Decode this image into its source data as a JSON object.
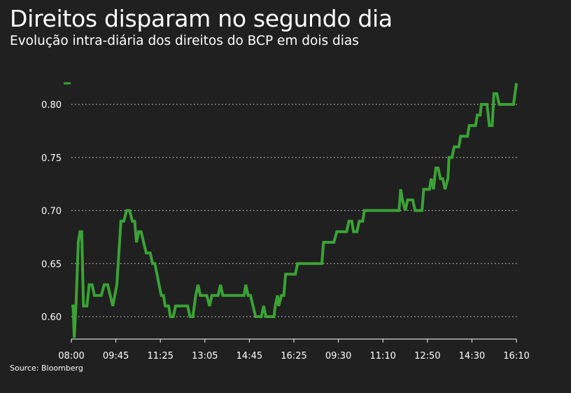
{
  "title": "Direitos disparam no segundo dia",
  "subtitle": "Evolução intra-diária dos direitos do BCP em dois dias",
  "source": "Source: Bloomberg",
  "colors": {
    "background": "#202020",
    "line": "#3aa335",
    "grid": "#bdbdbd",
    "text": "#ffffff"
  },
  "chart_data": {
    "type": "line",
    "title": "Direitos disparam no segundo dia",
    "subtitle": "Evolução intra-diária dos direitos do BCP em dois dias",
    "xlabel": "",
    "ylabel": "",
    "ylim": [
      0.58,
      0.82
    ],
    "grid": {
      "y": true,
      "style": "dotted"
    },
    "legend": "top-left",
    "x_ticks": [
      "08:00",
      "09:45",
      "11:25",
      "13:05",
      "14:45",
      "16:25",
      "09:30",
      "11:10",
      "12:50",
      "14:30",
      "16:10"
    ],
    "y_ticks": [
      {
        "value": 0.6,
        "label": "0.60"
      },
      {
        "value": 0.65,
        "label": "0.65"
      },
      {
        "value": 0.7,
        "label": "0.70"
      },
      {
        "value": 0.75,
        "label": "0.75"
      },
      {
        "value": 0.8,
        "label": "0.80"
      }
    ],
    "series": [
      {
        "name": "",
        "points": [
          [
            0.0,
            0.61
          ],
          [
            0.3,
            0.61
          ],
          [
            0.5,
            0.58
          ],
          [
            0.8,
            0.61
          ],
          [
            1.2,
            0.67
          ],
          [
            1.5,
            0.68
          ],
          [
            1.8,
            0.68
          ],
          [
            2.1,
            0.61
          ],
          [
            2.7,
            0.61
          ],
          [
            3.1,
            0.63
          ],
          [
            3.6,
            0.63
          ],
          [
            4.0,
            0.62
          ],
          [
            4.5,
            0.62
          ],
          [
            5.2,
            0.62
          ],
          [
            5.7,
            0.63
          ],
          [
            6.3,
            0.63
          ],
          [
            7.2,
            0.61
          ],
          [
            7.9,
            0.63
          ],
          [
            8.6,
            0.69
          ],
          [
            9.1,
            0.69
          ],
          [
            9.6,
            0.7
          ],
          [
            10.1,
            0.7
          ],
          [
            10.6,
            0.69
          ],
          [
            11.0,
            0.69
          ],
          [
            11.3,
            0.67
          ],
          [
            11.7,
            0.68
          ],
          [
            12.1,
            0.68
          ],
          [
            13.0,
            0.66
          ],
          [
            13.7,
            0.66
          ],
          [
            14.1,
            0.65
          ],
          [
            14.5,
            0.65
          ],
          [
            15.6,
            0.62
          ],
          [
            16.0,
            0.62
          ],
          [
            16.3,
            0.61
          ],
          [
            16.9,
            0.61
          ],
          [
            17.2,
            0.6
          ],
          [
            17.7,
            0.6
          ],
          [
            18.1,
            0.61
          ],
          [
            19.0,
            0.61
          ],
          [
            20.2,
            0.61
          ],
          [
            20.6,
            0.6
          ],
          [
            21.1,
            0.6
          ],
          [
            21.6,
            0.62
          ],
          [
            22.0,
            0.63
          ],
          [
            22.4,
            0.62
          ],
          [
            23.5,
            0.62
          ],
          [
            24.0,
            0.61
          ],
          [
            24.4,
            0.62
          ],
          [
            25.5,
            0.62
          ],
          [
            25.9,
            0.63
          ],
          [
            26.3,
            0.62
          ],
          [
            27.5,
            0.62
          ],
          [
            30.0,
            0.62
          ],
          [
            30.3,
            0.63
          ],
          [
            30.7,
            0.62
          ],
          [
            31.1,
            0.62
          ],
          [
            32.0,
            0.6
          ],
          [
            33.0,
            0.6
          ],
          [
            33.4,
            0.61
          ],
          [
            33.8,
            0.6
          ],
          [
            35.2,
            0.6
          ],
          [
            35.4,
            0.61
          ],
          [
            35.8,
            0.62
          ],
          [
            36.0,
            0.61
          ],
          [
            36.5,
            0.62
          ],
          [
            36.9,
            0.62
          ],
          [
            37.2,
            0.64
          ],
          [
            38.9,
            0.64
          ],
          [
            39.3,
            0.65
          ],
          [
            42.8,
            0.65
          ],
          [
            43.5,
            0.65
          ],
          [
            43.8,
            0.67
          ],
          [
            45.6,
            0.67
          ],
          [
            46.1,
            0.68
          ],
          [
            47.8,
            0.68
          ],
          [
            48.2,
            0.69
          ],
          [
            48.7,
            0.69
          ],
          [
            49.0,
            0.68
          ],
          [
            49.6,
            0.68
          ],
          [
            50.0,
            0.69
          ],
          [
            50.6,
            0.69
          ],
          [
            50.9,
            0.7
          ],
          [
            56.9,
            0.7
          ],
          [
            57.2,
            0.72
          ],
          [
            57.5,
            0.71
          ],
          [
            58.0,
            0.7
          ],
          [
            58.4,
            0.71
          ],
          [
            59.3,
            0.71
          ],
          [
            59.7,
            0.7
          ],
          [
            60.9,
            0.7
          ],
          [
            61.2,
            0.72
          ],
          [
            62.2,
            0.72
          ],
          [
            62.5,
            0.73
          ],
          [
            62.9,
            0.72
          ],
          [
            63.3,
            0.74
          ],
          [
            63.7,
            0.74
          ],
          [
            64.1,
            0.73
          ],
          [
            64.5,
            0.73
          ],
          [
            64.9,
            0.72
          ],
          [
            65.4,
            0.73
          ],
          [
            65.6,
            0.75
          ],
          [
            66.1,
            0.75
          ],
          [
            66.5,
            0.76
          ],
          [
            67.3,
            0.76
          ],
          [
            67.6,
            0.77
          ],
          [
            68.8,
            0.77
          ],
          [
            69.1,
            0.78
          ],
          [
            70.2,
            0.78
          ],
          [
            70.5,
            0.79
          ],
          [
            71.0,
            0.79
          ],
          [
            71.2,
            0.8
          ],
          [
            72.2,
            0.8
          ],
          [
            72.6,
            0.78
          ],
          [
            73.1,
            0.78
          ],
          [
            73.4,
            0.81
          ],
          [
            73.9,
            0.81
          ],
          [
            74.3,
            0.8
          ],
          [
            76.8,
            0.8
          ],
          [
            77.3,
            0.82
          ]
        ]
      }
    ]
  }
}
